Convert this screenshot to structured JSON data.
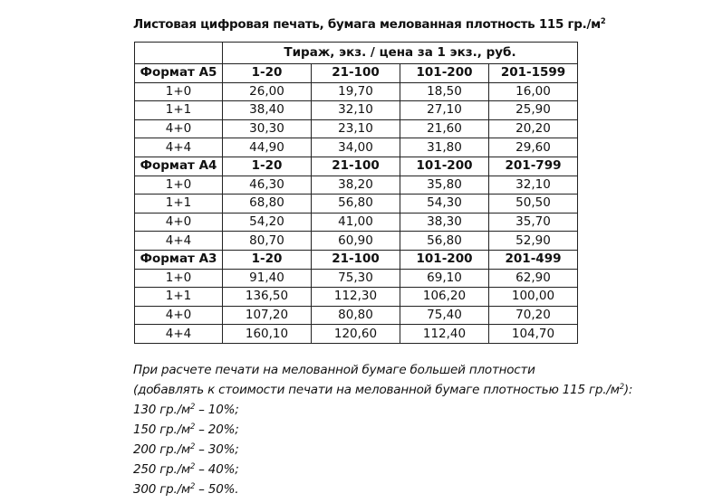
{
  "title": {
    "text": "Листовая цифровая печать, бумага мелованная плотность 115 гр./м",
    "sup": "2"
  },
  "table": {
    "header": "Тираж, экз. / цена за 1 экз., руб.",
    "sections": [
      {
        "format": "Формат А5",
        "ranges": [
          "1-20",
          "21-100",
          "101-200",
          "201-1599"
        ],
        "rows": [
          {
            "label": "1+0",
            "values": [
              "26,00",
              "19,70",
              "18,50",
              "16,00"
            ]
          },
          {
            "label": "1+1",
            "values": [
              "38,40",
              "32,10",
              "27,10",
              "25,90"
            ]
          },
          {
            "label": "4+0",
            "values": [
              "30,30",
              "23,10",
              "21,60",
              "20,20"
            ]
          },
          {
            "label": "4+4",
            "values": [
              "44,90",
              "34,00",
              "31,80",
              "29,60"
            ]
          }
        ]
      },
      {
        "format": "Формат А4",
        "ranges": [
          "1-20",
          "21-100",
          "101-200",
          "201-799"
        ],
        "rows": [
          {
            "label": "1+0",
            "values": [
              "46,30",
              "38,20",
              "35,80",
              "32,10"
            ]
          },
          {
            "label": "1+1",
            "values": [
              "68,80",
              "56,80",
              "54,30",
              "50,50"
            ]
          },
          {
            "label": "4+0",
            "values": [
              "54,20",
              "41,00",
              "38,30",
              "35,70"
            ]
          },
          {
            "label": "4+4",
            "values": [
              "80,70",
              "60,90",
              "56,80",
              "52,90"
            ]
          }
        ]
      },
      {
        "format": "Формат А3",
        "ranges": [
          "1-20",
          "21-100",
          "101-200",
          "201-499"
        ],
        "rows": [
          {
            "label": "1+0",
            "values": [
              "91,40",
              "75,30",
              "69,10",
              "62,90"
            ]
          },
          {
            "label": "1+1",
            "values": [
              "136,50",
              "112,30",
              "106,20",
              "100,00"
            ]
          },
          {
            "label": "4+0",
            "values": [
              "107,20",
              "80,80",
              "75,40",
              "70,20"
            ]
          },
          {
            "label": "4+4",
            "values": [
              "160,10",
              "120,60",
              "112,40",
              "104,70"
            ]
          }
        ]
      }
    ]
  },
  "notes": [
    {
      "pre": "При расчете печати на мелованной бумаге большей плотности",
      "sup": "",
      "post": ""
    },
    {
      "pre": "(добавлять к стоимости печати на мелованной бумаге плотностью 115 гр./м",
      "sup": "2",
      "post": "):"
    },
    {
      "pre": "130 гр./м",
      "sup": "2",
      "post": " – 10%;"
    },
    {
      "pre": "150 гр./м",
      "sup": "2",
      "post": " – 20%;"
    },
    {
      "pre": "200 гр./м",
      "sup": "2",
      "post": " – 30%;"
    },
    {
      "pre": "250 гр./м",
      "sup": "2",
      "post": " – 40%;"
    },
    {
      "pre": "300 гр./м",
      "sup": "2",
      "post": " – 50%."
    }
  ]
}
